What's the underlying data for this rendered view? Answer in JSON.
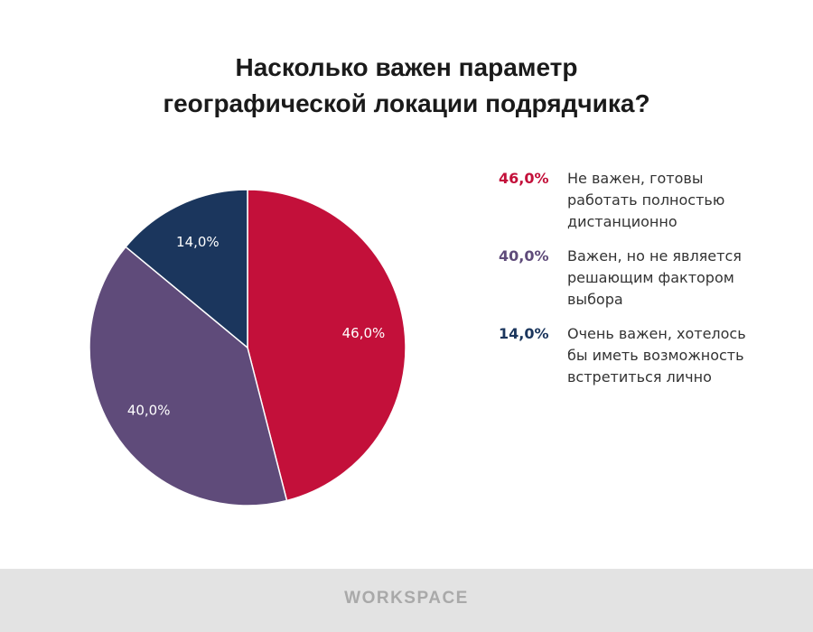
{
  "chart_data": {
    "type": "pie",
    "title_lines": [
      "Насколько важен параметр",
      "географической локации подрядчика?"
    ],
    "slices": [
      {
        "value": 46.0,
        "label": "46,0%",
        "description": "Не важен, готовы\nработать полностью\nдистанционно",
        "color": "#c3103a"
      },
      {
        "value": 40.0,
        "label": "40,0%",
        "description": "Важен, но не является\nрешающим фактором\nвыбора",
        "color": "#5f4b7a"
      },
      {
        "value": 14.0,
        "label": "14,0%",
        "description": "Очень важен, хотелось\nбы иметь возможность\nвстретиться лично",
        "color": "#1b365d"
      }
    ],
    "legend_position": "right",
    "start_angle_deg": 0,
    "direction": "clockwise"
  },
  "footer": {
    "logo_text": "WORKSPACE"
  },
  "colors": {
    "footer_bg": "#e3e3e3",
    "logo": "#a9a9a9"
  }
}
